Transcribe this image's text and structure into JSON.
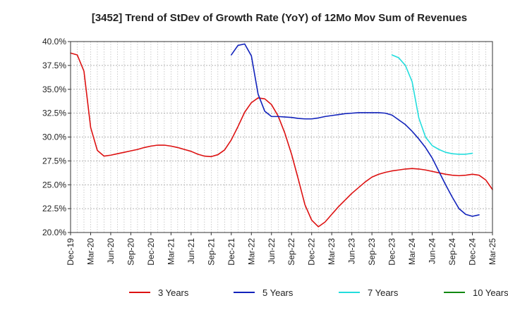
{
  "chart_data": {
    "type": "line",
    "title": "[3452]  Trend of StDev of Growth Rate (YoY) of 12Mo Mov Sum of Revenues",
    "xlabel": "",
    "ylabel": "",
    "ylim": [
      20.0,
      40.0
    ],
    "y_ticks": [
      20.0,
      22.5,
      25.0,
      27.5,
      30.0,
      32.5,
      35.0,
      37.5,
      40.0
    ],
    "y_tick_labels": [
      "20.0%",
      "22.5%",
      "25.0%",
      "27.5%",
      "30.0%",
      "32.5%",
      "35.0%",
      "37.5%",
      "40.0%"
    ],
    "x_range": [
      "2019-12",
      "2025-03"
    ],
    "x_ticks": [
      "Dec-19",
      "Mar-20",
      "Jun-20",
      "Sep-20",
      "Dec-20",
      "Mar-21",
      "Jun-21",
      "Sep-21",
      "Dec-21",
      "Mar-22",
      "Jun-22",
      "Sep-22",
      "Dec-22",
      "Mar-23",
      "Jun-23",
      "Sep-23",
      "Dec-23",
      "Mar-24",
      "Jun-24",
      "Sep-24",
      "Dec-24",
      "Mar-25"
    ],
    "grid": true,
    "legend_position": "bottom",
    "series": [
      {
        "name": "3 Years",
        "color": "#dd1111",
        "start": "2019-12",
        "values": [
          38.8,
          38.6,
          36.9,
          31.0,
          28.6,
          28.0,
          28.1,
          28.25,
          28.4,
          28.55,
          28.7,
          28.9,
          29.05,
          29.15,
          29.15,
          29.05,
          28.9,
          28.7,
          28.5,
          28.2,
          28.0,
          27.95,
          28.15,
          28.65,
          29.7,
          31.1,
          32.6,
          33.6,
          34.1,
          34.0,
          33.4,
          32.2,
          30.4,
          28.2,
          25.6,
          22.9,
          21.3,
          20.6,
          21.1,
          21.9,
          22.7,
          23.4,
          24.1,
          24.7,
          25.3,
          25.8,
          26.1,
          26.3,
          26.45,
          26.55,
          26.65,
          26.7,
          26.65,
          26.55,
          26.4,
          26.25,
          26.1,
          26.0,
          25.95,
          26.0,
          26.1,
          26.0,
          25.5,
          24.5
        ]
      },
      {
        "name": "5 Years",
        "color": "#1122bb",
        "start": "2021-12",
        "values": [
          38.6,
          39.6,
          39.75,
          38.5,
          34.5,
          32.7,
          32.15,
          32.15,
          32.1,
          32.05,
          31.95,
          31.9,
          31.9,
          32.0,
          32.15,
          32.25,
          32.35,
          32.45,
          32.5,
          32.55,
          32.55,
          32.55,
          32.55,
          32.5,
          32.3,
          31.8,
          31.3,
          30.6,
          29.8,
          28.9,
          27.8,
          26.4,
          25.0,
          23.7,
          22.5,
          21.9,
          21.7,
          21.85
        ]
      },
      {
        "name": "7 Years",
        "color": "#22dddd",
        "start": "2023-12",
        "values": [
          38.6,
          38.3,
          37.5,
          35.8,
          32.0,
          30.0,
          29.1,
          28.7,
          28.4,
          28.25,
          28.2,
          28.2,
          28.3
        ]
      },
      {
        "name": "10 Years",
        "color": "#118811",
        "start": "2024-12",
        "values": []
      }
    ]
  }
}
